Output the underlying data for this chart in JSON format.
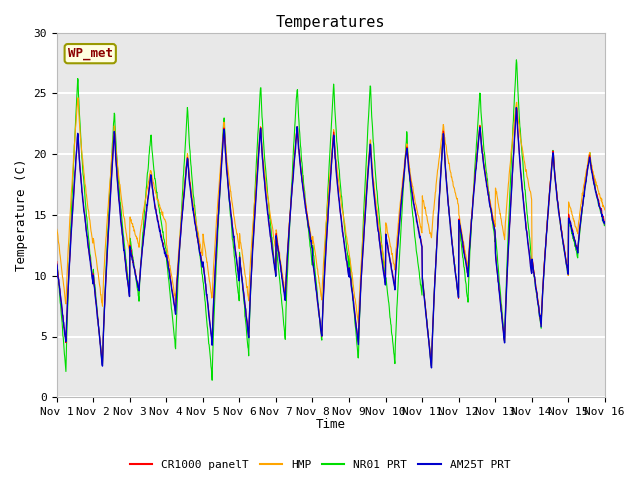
{
  "title": "Temperatures",
  "ylabel": "Temperature (C)",
  "xlabel": "Time",
  "ylim": [
    0,
    30
  ],
  "xlim": [
    0,
    15
  ],
  "xtick_labels": [
    "Nov 1",
    "Nov 2",
    "Nov 3",
    "Nov 4",
    "Nov 5",
    "Nov 6",
    "Nov 7",
    "Nov 8",
    "Nov 9",
    "Nov 10",
    "Nov 11",
    "Nov 12",
    "Nov 13",
    "Nov 14",
    "Nov 15",
    "Nov 16"
  ],
  "ytick_labels": [
    "0",
    "5",
    "10",
    "15",
    "20",
    "25",
    "30"
  ],
  "series_colors": {
    "CR1000 panelT": "#ff0000",
    "HMP": "#ffa500",
    "NR01 PRT": "#00dd00",
    "AM25T PRT": "#0000cc"
  },
  "legend_label": "WP_met",
  "legend_bg": "#ffffe0",
  "legend_border": "#999900",
  "background_color": "#e8e8e8",
  "grid_color": "#ffffff",
  "title_fontsize": 11,
  "axis_fontsize": 9,
  "tick_fontsize": 8,
  "day_peaks_base": [
    22.0,
    22.2,
    18.5,
    20.0,
    22.5,
    22.5,
    22.5,
    22.0,
    21.2,
    20.8,
    22.2,
    22.5,
    24.2,
    20.5,
    20.0
  ],
  "day_peaks_hmp": [
    25.0,
    22.5,
    18.8,
    20.2,
    22.7,
    22.5,
    22.5,
    22.2,
    21.5,
    21.0,
    22.5,
    22.5,
    24.5,
    20.5,
    20.2
  ],
  "day_peaks_green": [
    26.7,
    23.8,
    21.8,
    24.0,
    23.5,
    26.0,
    25.8,
    26.0,
    26.1,
    22.0,
    22.2,
    25.2,
    28.2,
    20.5,
    20.2
  ],
  "day_troughs_base": [
    4.5,
    2.7,
    8.8,
    7.0,
    4.5,
    5.0,
    8.0,
    5.0,
    4.5,
    9.0,
    2.5,
    10.0,
    4.5,
    6.0,
    12.0
  ],
  "day_troughs_hmp": [
    7.5,
    7.5,
    12.5,
    8.0,
    8.0,
    8.0,
    8.5,
    8.0,
    6.0,
    10.5,
    13.0,
    10.5,
    13.0,
    6.0,
    13.5
  ],
  "day_troughs_green": [
    2.2,
    2.5,
    8.0,
    4.0,
    1.5,
    3.5,
    4.8,
    4.5,
    3.0,
    2.8,
    2.5,
    7.8,
    4.5,
    5.8,
    11.5
  ],
  "peak_time": 0.58,
  "trough_time": 0.25
}
